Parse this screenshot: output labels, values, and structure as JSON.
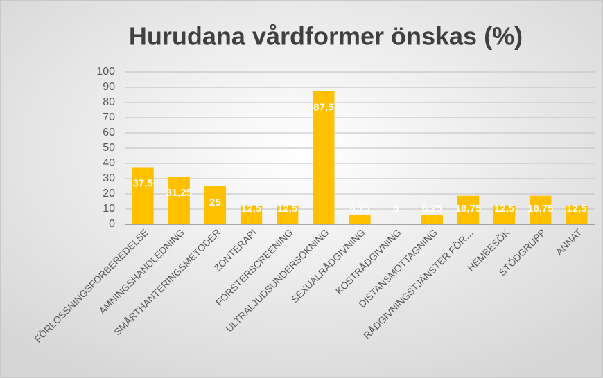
{
  "chart_data": {
    "type": "bar",
    "title": "Hurudana vårdformer önskas (%)",
    "categories": [
      "FÖRLOSSNINGSFÖRBEREDELSE",
      "AMNINGSHANDLEDNING",
      "SMÄRTHANTERINGSMETODER",
      "ZONTERAPI",
      "FORSTERSCREENING",
      "ULTRALJUDSUNDERSÖKNING",
      "SEXUALRÅDGIVNING",
      "KOSTRÅDGIVNING",
      "DISTANSMOTTAGNING",
      "RÅDGIVNINGSTJÄNSTER FÖR…",
      "HEMBESÖK",
      "STÖDGRUPP",
      "ANNAT"
    ],
    "values": [
      37.5,
      31.25,
      25,
      12.5,
      12.5,
      87.5,
      6.25,
      0,
      6.25,
      18.75,
      12.5,
      18.75,
      12.5
    ],
    "value_labels": [
      "37,5",
      "31,25",
      "25",
      "12,5",
      "12,5",
      "87,5",
      "6,25",
      "0",
      "6,25",
      "18,75",
      "12,5",
      "18,75",
      "12,5"
    ],
    "color": "#ffc000",
    "ylim": [
      0,
      100
    ],
    "yticks": [
      0,
      10,
      20,
      30,
      40,
      50,
      60,
      70,
      80,
      90,
      100
    ],
    "grid": true
  }
}
